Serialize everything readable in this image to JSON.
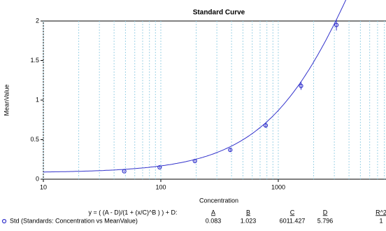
{
  "chart_data": {
    "type": "scatter",
    "title": "Standard Curve",
    "x_label": "Concentration",
    "y_label": "MeanValue",
    "log_x": true,
    "xlim": [
      10,
      8260
    ],
    "xticks": [
      10,
      100,
      1000
    ],
    "xgrid": [
      20,
      30,
      40,
      50,
      60,
      70,
      80,
      90,
      200,
      300,
      400,
      500,
      600,
      700,
      800,
      900,
      2000,
      3000,
      4000,
      5000,
      6000,
      7000,
      8000
    ],
    "ylim": [
      0,
      2
    ],
    "yticks": [
      0,
      0.5,
      1,
      1.5,
      2
    ],
    "color": "#3333cc",
    "x": [
      48.8,
      97.7,
      195,
      390,
      781,
      1562,
      3125
    ],
    "values": [
      0.1,
      0.15,
      0.23,
      0.37,
      0.68,
      1.18,
      1.95
    ],
    "errors": [
      0.01,
      0.01,
      0.01,
      0.02,
      0.03,
      0.05,
      0.07
    ]
  },
  "fit_table": {
    "equation": "y = ( (A - D)/(1 + (x/C)^B ) ) + D:",
    "headers": [
      "A",
      "B",
      "C",
      "D",
      "R^2"
    ],
    "row_label": "Std (Standards: Concentration vs MeanValue)",
    "values": [
      0.083,
      1.023,
      6011.427,
      5.796,
      1
    ]
  }
}
